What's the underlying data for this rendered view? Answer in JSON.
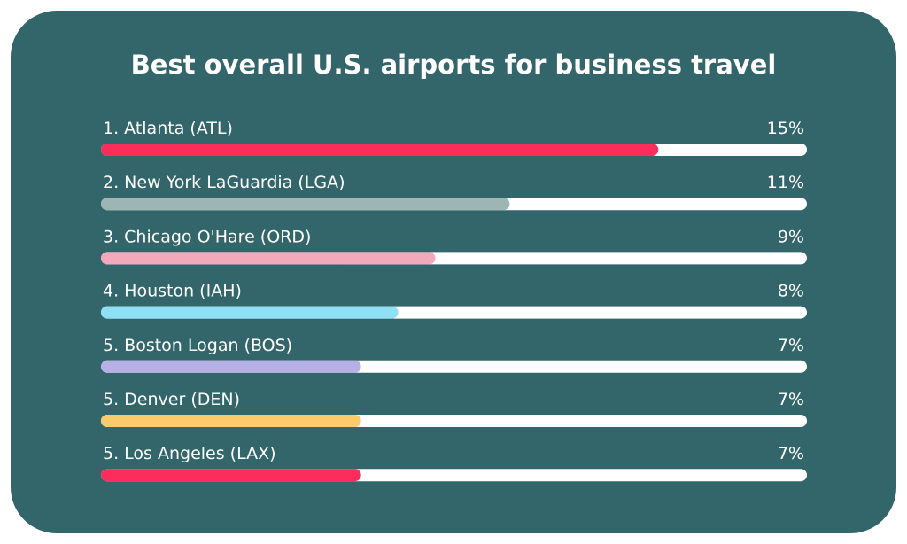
{
  "chart_data": {
    "type": "bar",
    "orientation": "horizontal",
    "title": "Best overall U.S. airports for business travel",
    "categories": [
      "1. Atlanta (ATL)",
      "2. New York LaGuardia (LGA)",
      "3. Chicago O'Hare (ORD)",
      "4. Houston (IAH)",
      "5. Boston Logan (BOS)",
      "5. Denver (DEN)",
      "5. Los Angeles (LAX)"
    ],
    "values": [
      15,
      11,
      9,
      8,
      7,
      7,
      7
    ],
    "value_labels": [
      "15%",
      "11%",
      "9%",
      "8%",
      "7%",
      "7%",
      "7%"
    ],
    "colors": [
      "#fb2d5b",
      "#9eb5b5",
      "#f1a9bb",
      "#8fe0f5",
      "#b6b0e6",
      "#fbcb6b",
      "#fb2d5b"
    ],
    "xlim": [
      0,
      19
    ]
  }
}
